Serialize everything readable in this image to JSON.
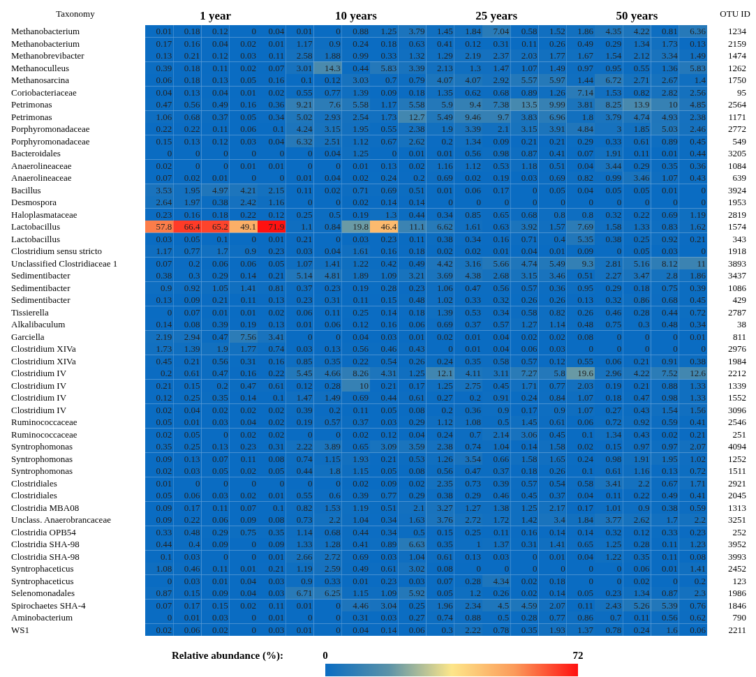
{
  "chart_data": {
    "type": "heatmap",
    "ylabel": "Taxonomy",
    "y2label": "OTU ID",
    "clabel": "Relative abundance (%):",
    "clim": [
      0,
      72
    ],
    "cticks": [
      0,
      72
    ],
    "data_labels": true,
    "categories": [
      null,
      null,
      "1 year",
      null,
      null,
      null,
      null,
      "10 years",
      null,
      null,
      null,
      null,
      "25 years",
      null,
      null,
      null,
      null,
      "50 years",
      null,
      null
    ],
    "y_categories": [
      "Methanobacterium",
      "Methanobacterium",
      "Methanobrevibacter",
      "Methanoculleus",
      "Methanosarcina",
      "Coriobacteriaceae",
      "Petrimonas",
      "Petrimonas",
      "Porphyromonadaceae",
      "Porphyromonadaceae",
      "Bacteroidales",
      "Anaerolineaceae",
      "Anaerolineaceae",
      "Bacillus",
      "Desmospora",
      "Haloplasmataceae",
      "Lactobacillus",
      "Lactobacillus",
      "Clostridium sensu stricto",
      "Unclassified Clostridiaceae 1",
      "Sedimentibacter",
      "Sedimentibacter",
      "Sedimentibacter",
      "Tissierella",
      "Alkalibaculum",
      "Garciella",
      "Clostridium XIVa",
      "Clostridium XIVa",
      "Clostridium IV",
      "Clostridium IV",
      "Clostridium IV",
      "Clostridium IV",
      "Ruminococcaceae",
      "Ruminococcaceae",
      "Syntrophomonas",
      "Syntrophomonas",
      "Syntrophomonas",
      "Clostridiales",
      "Clostridiales",
      "Clostridia MBA08",
      "Unclass. Anaerobrancaceae",
      "Clostridia OPB54",
      "Clostridia SHA-98",
      "Clostridia SHA-98",
      "Syntrophaceticus",
      "Syntrophaceticus",
      "Selenomonadales",
      "Spirochaetes SHA-4",
      "Aminobacterium",
      "WS1"
    ],
    "y2_categories": [
      "1234",
      "2159",
      "1474",
      "1262",
      "1750",
      "95",
      "2564",
      "1171",
      "2772",
      "549",
      "3205",
      "1084",
      "639",
      "3924",
      "1953",
      "2819",
      "1574",
      "343",
      "1918",
      "3893",
      "3437",
      "1086",
      "429",
      "2787",
      "38",
      "811",
      "2976",
      "1984",
      "2212",
      "1339",
      "1552",
      "3096",
      "2546",
      "251",
      "4094",
      "1252",
      "1511",
      "2921",
      "2045",
      "1313",
      "3251",
      "252",
      "3952",
      "3993",
      "2452",
      "123",
      "1986",
      "1846",
      "790",
      "2211"
    ],
    "cells": [
      [
        0.01,
        0.18,
        0.12,
        0,
        0.04,
        0.01,
        0,
        0.88,
        1.25,
        3.79,
        1.45,
        1.84,
        7.04,
        0.58,
        1.52,
        1.86,
        4.35,
        4.22,
        0.81,
        6.36
      ],
      [
        0.17,
        0.16,
        0.04,
        0.02,
        0.01,
        1.17,
        0.9,
        0.24,
        0.18,
        0.63,
        0.41,
        0.12,
        0.31,
        0.11,
        0.26,
        0.49,
        0.29,
        1.34,
        1.73,
        0.13
      ],
      [
        0.13,
        0.21,
        0.12,
        0.03,
        0.11,
        2.58,
        1.88,
        0.99,
        0.33,
        1.32,
        1.29,
        2.19,
        2.37,
        2.03,
        1.77,
        1.67,
        1.54,
        2.12,
        3.34,
        1.49
      ],
      [
        0.39,
        0.18,
        0.11,
        0.02,
        0.07,
        3.01,
        14.3,
        0.44,
        5.83,
        3.39,
        2.13,
        1.3,
        1.47,
        1.07,
        1.49,
        0.97,
        0.95,
        0.55,
        1.36,
        5.83
      ],
      [
        0.06,
        0.18,
        0.13,
        0.05,
        0.16,
        0.1,
        0.12,
        3.03,
        0.7,
        0.79,
        4.07,
        4.07,
        2.92,
        5.57,
        5.97,
        1.44,
        6.72,
        2.71,
        2.67,
        1.4
      ],
      [
        0.04,
        0.13,
        0.04,
        0.01,
        0.02,
        0.55,
        0.77,
        1.39,
        0.09,
        0.18,
        1.35,
        0.62,
        0.68,
        0.89,
        1.26,
        7.14,
        1.53,
        0.82,
        2.82,
        2.56
      ],
      [
        0.47,
        0.56,
        0.49,
        0.16,
        0.36,
        9.21,
        7.6,
        5.58,
        1.17,
        5.58,
        5.9,
        9.4,
        7.38,
        13.5,
        9.99,
        3.81,
        8.25,
        13.9,
        10,
        4.85
      ],
      [
        1.06,
        0.68,
        0.37,
        0.05,
        0.34,
        5.02,
        2.93,
        2.54,
        1.73,
        12.7,
        5.49,
        9.46,
        9.7,
        3.83,
        6.96,
        1.8,
        3.79,
        4.74,
        4.93,
        2.38
      ],
      [
        0.22,
        0.22,
        0.11,
        0.06,
        0.1,
        4.24,
        3.15,
        1.95,
        0.55,
        2.38,
        1.9,
        3.39,
        2.1,
        3.15,
        3.91,
        4.84,
        3,
        1.85,
        5.03,
        2.46
      ],
      [
        0.15,
        0.13,
        0.12,
        0.03,
        0.04,
        6.32,
        2.51,
        1.12,
        0.67,
        2.62,
        0.2,
        1.34,
        0.09,
        0.21,
        0.21,
        0.29,
        0.33,
        0.61,
        0.89,
        0.45
      ],
      [
        0,
        0,
        0,
        0,
        0,
        0,
        0.04,
        1.25,
        0,
        0.01,
        0.01,
        0.56,
        0.98,
        0.87,
        0.41,
        0.07,
        1.91,
        0.11,
        0.01,
        0.44
      ],
      [
        0.02,
        0,
        0,
        0.01,
        0.01,
        0,
        0,
        0.01,
        0.13,
        0.02,
        1.16,
        1.12,
        0.53,
        1.18,
        0.51,
        0.04,
        3.44,
        0.29,
        0.35,
        0.36
      ],
      [
        0.07,
        0.02,
        0.01,
        0,
        0,
        0.01,
        0.04,
        0.02,
        0.24,
        0.2,
        0.69,
        0.02,
        0.19,
        0.03,
        0.69,
        0.82,
        0.99,
        3.46,
        1.07,
        0.43
      ],
      [
        3.53,
        1.95,
        4.97,
        4.21,
        2.15,
        0.11,
        0.02,
        0.71,
        0.69,
        0.51,
        0.01,
        0.06,
        0.17,
        0,
        0.05,
        0.04,
        0.05,
        0.05,
        0.01,
        0
      ],
      [
        2.64,
        1.97,
        0.38,
        2.42,
        1.16,
        0,
        0,
        0.02,
        0.14,
        0.14,
        0,
        0,
        0,
        0,
        0,
        0,
        0,
        0,
        0,
        0
      ],
      [
        0.23,
        0.16,
        0.18,
        0.22,
        0.12,
        0.25,
        0.5,
        0.19,
        1.3,
        0.44,
        0.34,
        0.85,
        0.65,
        0.68,
        0.8,
        0.8,
        0.32,
        0.22,
        0.69,
        1.19
      ],
      [
        57.8,
        66.4,
        65.2,
        49.1,
        71.9,
        1.1,
        0.84,
        19.8,
        46.4,
        11.1,
        6.62,
        1.61,
        0.63,
        3.92,
        1.57,
        7.69,
        1.58,
        1.33,
        0.83,
        1.62
      ],
      [
        0.03,
        0.05,
        0.1,
        0,
        0.01,
        0.21,
        0,
        0.03,
        0.23,
        0.11,
        0.38,
        0.34,
        0.16,
        0.71,
        0.4,
        5.35,
        0.38,
        0.25,
        0.92,
        0.21
      ],
      [
        1.17,
        0.77,
        1.7,
        0.9,
        0.23,
        0.03,
        0.04,
        1.61,
        0.16,
        0.18,
        0.02,
        0.02,
        0.01,
        0.04,
        0.01,
        0.09,
        0,
        0.05,
        0.03,
        0
      ],
      [
        0.07,
        0.2,
        0.06,
        0.06,
        0.05,
        1.07,
        1.41,
        1.22,
        0.42,
        0.49,
        4.42,
        3.16,
        5.66,
        4.74,
        5.49,
        9.3,
        2.81,
        5.16,
        8.12,
        11
      ],
      [
        0.38,
        0.3,
        0.29,
        0.14,
        0.21,
        5.14,
        4.81,
        1.89,
        1.09,
        3.21,
        3.69,
        4.38,
        2.68,
        3.15,
        3.46,
        0.51,
        2.27,
        3.47,
        2.8,
        1.86
      ],
      [
        0.9,
        0.92,
        1.05,
        1.41,
        0.81,
        0.37,
        0.23,
        0.19,
        0.28,
        0.23,
        1.06,
        0.47,
        0.56,
        0.57,
        0.36,
        0.95,
        0.29,
        0.18,
        0.75,
        0.39
      ],
      [
        0.13,
        0.09,
        0.21,
        0.11,
        0.13,
        0.23,
        0.31,
        0.11,
        0.15,
        0.48,
        1.02,
        0.33,
        0.32,
        0.26,
        0.26,
        0.13,
        0.32,
        0.86,
        0.68,
        0.45
      ],
      [
        0,
        0.07,
        0.01,
        0.01,
        0.02,
        0.06,
        0.11,
        0.25,
        0.14,
        0.18,
        1.39,
        0.53,
        0.34,
        0.58,
        0.82,
        0.26,
        0.46,
        0.28,
        0.44,
        0.72
      ],
      [
        0.14,
        0.08,
        0.39,
        0.19,
        0.13,
        0.01,
        0.06,
        0.12,
        0.16,
        0.06,
        0.69,
        0.37,
        0.57,
        1.27,
        1.14,
        0.48,
        0.75,
        0.3,
        0.48,
        0.34
      ],
      [
        2.19,
        2.94,
        0.47,
        7.56,
        3.41,
        0,
        0,
        0.04,
        0.03,
        0.01,
        0.02,
        0.01,
        0.04,
        0.02,
        0.02,
        0.08,
        0,
        0,
        0,
        0.01
      ],
      [
        1.73,
        1.39,
        1.9,
        1.77,
        0.74,
        0.03,
        0.13,
        0.56,
        0.46,
        0.43,
        0,
        0.01,
        0.04,
        0.06,
        0.03,
        0,
        0,
        0,
        0,
        0
      ],
      [
        0.45,
        0.21,
        0.56,
        0.31,
        0.16,
        0.85,
        0.35,
        0.22,
        0.54,
        0.26,
        0.24,
        0.35,
        0.58,
        0.57,
        0.12,
        0.55,
        0.06,
        0.21,
        0.91,
        0.38
      ],
      [
        0.2,
        0.61,
        0.47,
        0.16,
        0.22,
        5.45,
        4.66,
        8.26,
        4.31,
        1.25,
        12.1,
        4.11,
        3.11,
        7.27,
        5.8,
        19.6,
        2.96,
        4.22,
        7.52,
        12.6
      ],
      [
        0.21,
        0.15,
        0.2,
        0.47,
        0.61,
        0.12,
        0.28,
        10,
        0.21,
        0.17,
        1.25,
        2.75,
        0.45,
        1.71,
        0.77,
        2.03,
        0.19,
        0.21,
        0.88,
        1.33
      ],
      [
        0.12,
        0.25,
        0.35,
        0.14,
        0.1,
        1.47,
        1.49,
        0.69,
        0.44,
        0.61,
        0.27,
        0.2,
        0.91,
        0.24,
        0.84,
        1.07,
        0.18,
        0.47,
        0.98,
        1.33
      ],
      [
        0.02,
        0.04,
        0.02,
        0.02,
        0.02,
        0.39,
        0.2,
        0.11,
        0.05,
        0.08,
        0.2,
        0.36,
        0.9,
        0.17,
        0.9,
        1.07,
        0.27,
        0.43,
        1.54,
        1.56
      ],
      [
        0.05,
        0.01,
        0.03,
        0.04,
        0.02,
        0.19,
        0.57,
        0.37,
        0.03,
        0.29,
        1.12,
        1.08,
        0.5,
        1.45,
        0.61,
        0.06,
        0.72,
        0.92,
        0.59,
        0.41
      ],
      [
        0.02,
        0.05,
        0,
        0.02,
        0.02,
        0,
        0,
        0.02,
        0.12,
        0.04,
        0.24,
        0.7,
        2.14,
        3.06,
        0.45,
        0.1,
        1.34,
        0.43,
        0.02,
        0.21
      ],
      [
        0.35,
        0.25,
        0.13,
        0.23,
        0.31,
        2.22,
        3.89,
        0.65,
        3.09,
        3.59,
        2.38,
        0.74,
        1.04,
        0.14,
        1.58,
        0.02,
        0.15,
        0.97,
        0.97,
        2.07
      ],
      [
        0.09,
        0.13,
        0.07,
        0.11,
        0.08,
        0.74,
        1.15,
        1.93,
        0.21,
        0.53,
        1.26,
        3.54,
        0.66,
        1.58,
        1.65,
        0.24,
        0.98,
        1.91,
        1.95,
        1.02
      ],
      [
        0.02,
        0.03,
        0.05,
        0.02,
        0.05,
        0.44,
        1.8,
        1.15,
        0.05,
        0.08,
        0.56,
        0.47,
        0.37,
        0.18,
        0.26,
        0.1,
        0.61,
        1.16,
        0.13,
        0.72
      ],
      [
        0.01,
        0,
        0,
        0,
        0,
        0,
        0,
        0.02,
        0.09,
        0.02,
        2.35,
        0.73,
        0.39,
        0.57,
        0.54,
        0.58,
        3.41,
        2.2,
        0.67,
        1.71
      ],
      [
        0.05,
        0.06,
        0.03,
        0.02,
        0.01,
        0.55,
        0.6,
        0.39,
        0.77,
        0.29,
        0.38,
        0.29,
        0.46,
        0.45,
        0.37,
        0.04,
        0.11,
        0.22,
        0.49,
        0.41
      ],
      [
        0.09,
        0.17,
        0.11,
        0.07,
        0.1,
        0.82,
        1.53,
        1.19,
        0.51,
        2.1,
        3.27,
        1.27,
        1.38,
        1.25,
        2.17,
        0.17,
        1.01,
        0.9,
        0.38,
        0.59
      ],
      [
        0.09,
        0.22,
        0.06,
        0.09,
        0.08,
        0.73,
        2.2,
        1.04,
        0.34,
        1.63,
        3.76,
        2.72,
        1.72,
        1.42,
        3.4,
        1.84,
        3.77,
        2.62,
        1.7,
        2.2
      ],
      [
        0.33,
        0.48,
        0.29,
        0.75,
        0.35,
        1.14,
        0.68,
        0.44,
        0.34,
        0.5,
        0.15,
        0.25,
        0.11,
        0.16,
        0.14,
        0.14,
        0.32,
        0.12,
        0.33,
        0.23
      ],
      [
        0.44,
        0.4,
        0.09,
        0,
        0.09,
        1.33,
        1.28,
        0.41,
        0.89,
        6.63,
        0.35,
        1,
        1.37,
        0.31,
        1.41,
        0.65,
        1.25,
        0.28,
        0.11,
        1.23
      ],
      [
        0.1,
        0.03,
        0,
        0,
        0.01,
        2.66,
        2.72,
        0.69,
        0.03,
        1.04,
        0.61,
        0.13,
        0.03,
        0,
        0.01,
        0.04,
        1.22,
        0.35,
        0.11,
        0.08
      ],
      [
        1.08,
        0.46,
        0.11,
        0.01,
        0.21,
        1.19,
        2.59,
        0.49,
        0.61,
        3.02,
        0.08,
        0,
        0,
        0,
        0,
        0,
        0,
        0.06,
        0.01,
        1.41
      ],
      [
        0,
        0.03,
        0.01,
        0.04,
        0.03,
        0.9,
        0.33,
        0.01,
        0.23,
        0.03,
        0.07,
        0.28,
        4.34,
        0.02,
        0.18,
        0,
        0,
        0.02,
        0,
        0.2
      ],
      [
        0.87,
        0.15,
        0.09,
        0.04,
        0.03,
        6.71,
        6.25,
        1.15,
        1.09,
        5.92,
        0.05,
        1.2,
        0.26,
        0.02,
        0.14,
        0.05,
        0.23,
        1.34,
        0.87,
        2.3
      ],
      [
        0.07,
        0.17,
        0.15,
        0.02,
        0.11,
        0.01,
        0,
        4.46,
        3.04,
        0.25,
        1.96,
        2.34,
        4.5,
        4.59,
        2.07,
        0.11,
        2.43,
        5.26,
        5.39,
        0.76
      ],
      [
        0,
        0.01,
        0.03,
        0,
        0.01,
        0,
        0,
        0.31,
        0.03,
        0.27,
        0.74,
        0.88,
        0.5,
        0.28,
        0.77,
        0.86,
        0.7,
        0.11,
        0.56,
        0.62
      ],
      [
        0.02,
        0.06,
        0.02,
        0,
        0.03,
        0.01,
        0,
        0.04,
        0.14,
        0.06,
        0.3,
        2.22,
        0.78,
        0.35,
        1.93,
        1.37,
        0.78,
        0.24,
        1.6,
        0.06
      ]
    ]
  }
}
